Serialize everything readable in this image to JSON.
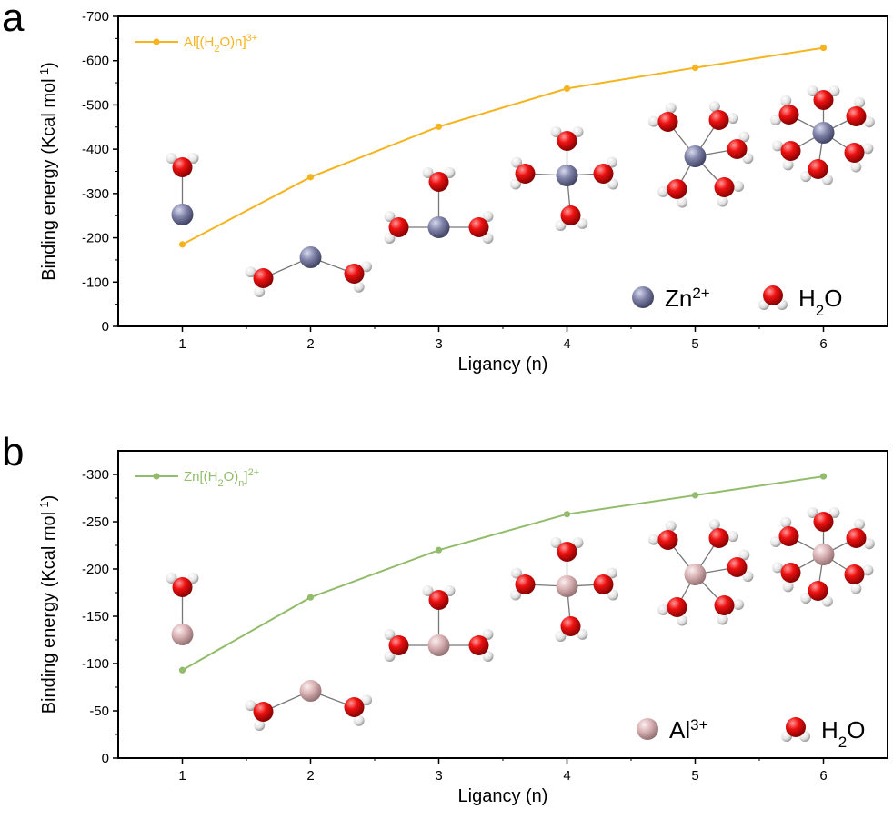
{
  "chart_data": [
    {
      "panel": "a",
      "type": "line",
      "xlabel": "Ligancy (n)",
      "ylabel": "Binding energy (Kcal mol",
      "ylabel_sup": "-1",
      "ylabel_close": ")",
      "x": [
        1,
        2,
        3,
        4,
        5,
        6
      ],
      "xlim": [
        0.5,
        6.5
      ],
      "ylim": [
        0,
        -700
      ],
      "yticks": [
        0,
        -100,
        -200,
        -300,
        -400,
        -500,
        -600,
        -700
      ],
      "yticklabels": [
        "0",
        "-100",
        "-200",
        "-300",
        "-400",
        "-500",
        "-600",
        "-700"
      ],
      "series": [
        {
          "name": "Al[(H2O)n]3+",
          "legend": {
            "pre": "Al[(H",
            "sub": "2",
            "mid": "O)n]",
            "sup": "3+"
          },
          "color": "#F5B41E",
          "values": [
            -185,
            -337,
            -451,
            -537,
            -584,
            -629
          ]
        }
      ],
      "legend_position": "top-left",
      "key": {
        "ion": {
          "base": "Zn",
          "sup": "2+",
          "color": "#8083A8"
        },
        "water": {
          "pre": "H",
          "sub": "2",
          "post": "O"
        }
      }
    },
    {
      "panel": "b",
      "type": "line",
      "xlabel": "Ligancy (n)",
      "ylabel": "Binding energy (Kcal mol",
      "ylabel_sup": "-1",
      "ylabel_close": ")",
      "x": [
        1,
        2,
        3,
        4,
        5,
        6
      ],
      "xlim": [
        0.5,
        6.5
      ],
      "ylim": [
        0,
        -325
      ],
      "yticks": [
        0,
        -50,
        -100,
        -150,
        -200,
        -250,
        -300
      ],
      "yticklabels": [
        "0",
        "-50",
        "-100",
        "-150",
        "-200",
        "-250",
        "-300"
      ],
      "series": [
        {
          "name": "Zn[(H2O)n]2+",
          "legend": {
            "pre": "Zn[(H",
            "sub": "2",
            "mid": "O)",
            "sub2": "n",
            "end": "]",
            "sup": "2+"
          },
          "color": "#92BC6C",
          "values": [
            -93,
            -170,
            -220,
            -258,
            -278,
            -298
          ]
        }
      ],
      "legend_position": "top-left",
      "key": {
        "ion": {
          "base": "Al",
          "sup": "3+",
          "color": "#D9B2B4"
        },
        "water": {
          "pre": "H",
          "sub": "2",
          "post": "O"
        }
      }
    }
  ]
}
